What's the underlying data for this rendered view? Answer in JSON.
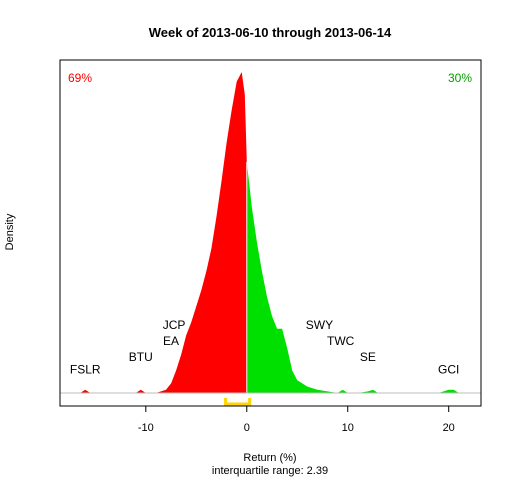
{
  "chart_data": {
    "type": "area",
    "title": "Week of 2013-06-10 through 2013-06-14",
    "xlabel": "Return (%)",
    "ylabel": "Density",
    "subtitle": "interquartile range: 2.39",
    "xlim": [
      -18.5,
      23.2
    ],
    "ylim": [
      0,
      1
    ],
    "x_ticks": [
      -10,
      0,
      10,
      20
    ],
    "x_tick_labels": [
      "-10",
      "0",
      "10",
      "20"
    ],
    "left_pct": "69%",
    "right_pct": "30%",
    "colors": {
      "negative": "#ff0000",
      "positive": "#00e000",
      "iqr": "#ffd400",
      "axis": "#000000",
      "pct_left": "#ff0000",
      "pct_right": "#00a000"
    },
    "iqr": [
      -2.1,
      0.29
    ],
    "density": {
      "x": [
        -18,
        -16.5,
        -16,
        -15.5,
        -14,
        -11,
        -10.5,
        -10,
        -9,
        -8.5,
        -8,
        -7.5,
        -7,
        -6.5,
        -6,
        -5.5,
        -5,
        -4.5,
        -4,
        -3.5,
        -3,
        -2.5,
        -2,
        -1.5,
        -1,
        -0.5,
        -0.2,
        0,
        0.5,
        1,
        1.5,
        2,
        2.5,
        3,
        3.5,
        4,
        4.5,
        5,
        6,
        7,
        8,
        9,
        9.5,
        10,
        11,
        12,
        12.5,
        13,
        15,
        19,
        20,
        20.5,
        21,
        22
      ],
      "y": [
        0,
        0,
        0.01,
        0,
        0,
        0,
        0.01,
        0,
        0,
        0.005,
        0.01,
        0.03,
        0.07,
        0.12,
        0.18,
        0.22,
        0.27,
        0.32,
        0.38,
        0.45,
        0.55,
        0.66,
        0.78,
        0.88,
        0.97,
        1.0,
        0.93,
        0.72,
        0.58,
        0.47,
        0.38,
        0.3,
        0.24,
        0.2,
        0.2,
        0.14,
        0.07,
        0.04,
        0.02,
        0.01,
        0.005,
        0,
        0.01,
        0,
        0,
        0.005,
        0.01,
        0,
        0,
        0,
        0.01,
        0.01,
        0,
        0
      ]
    },
    "labels": [
      {
        "text": "FSLR",
        "x": -16,
        "y": 0.06
      },
      {
        "text": "BTU",
        "x": -10.5,
        "y": 0.1
      },
      {
        "text": "JCP",
        "x": -7.2,
        "y": 0.2
      },
      {
        "text": "EA",
        "x": -7.5,
        "y": 0.15
      },
      {
        "text": "SWY",
        "x": 7.2,
        "y": 0.2
      },
      {
        "text": "TWC",
        "x": 9.3,
        "y": 0.15
      },
      {
        "text": "SE",
        "x": 12,
        "y": 0.1
      },
      {
        "text": "GCI",
        "x": 20,
        "y": 0.06
      }
    ]
  }
}
